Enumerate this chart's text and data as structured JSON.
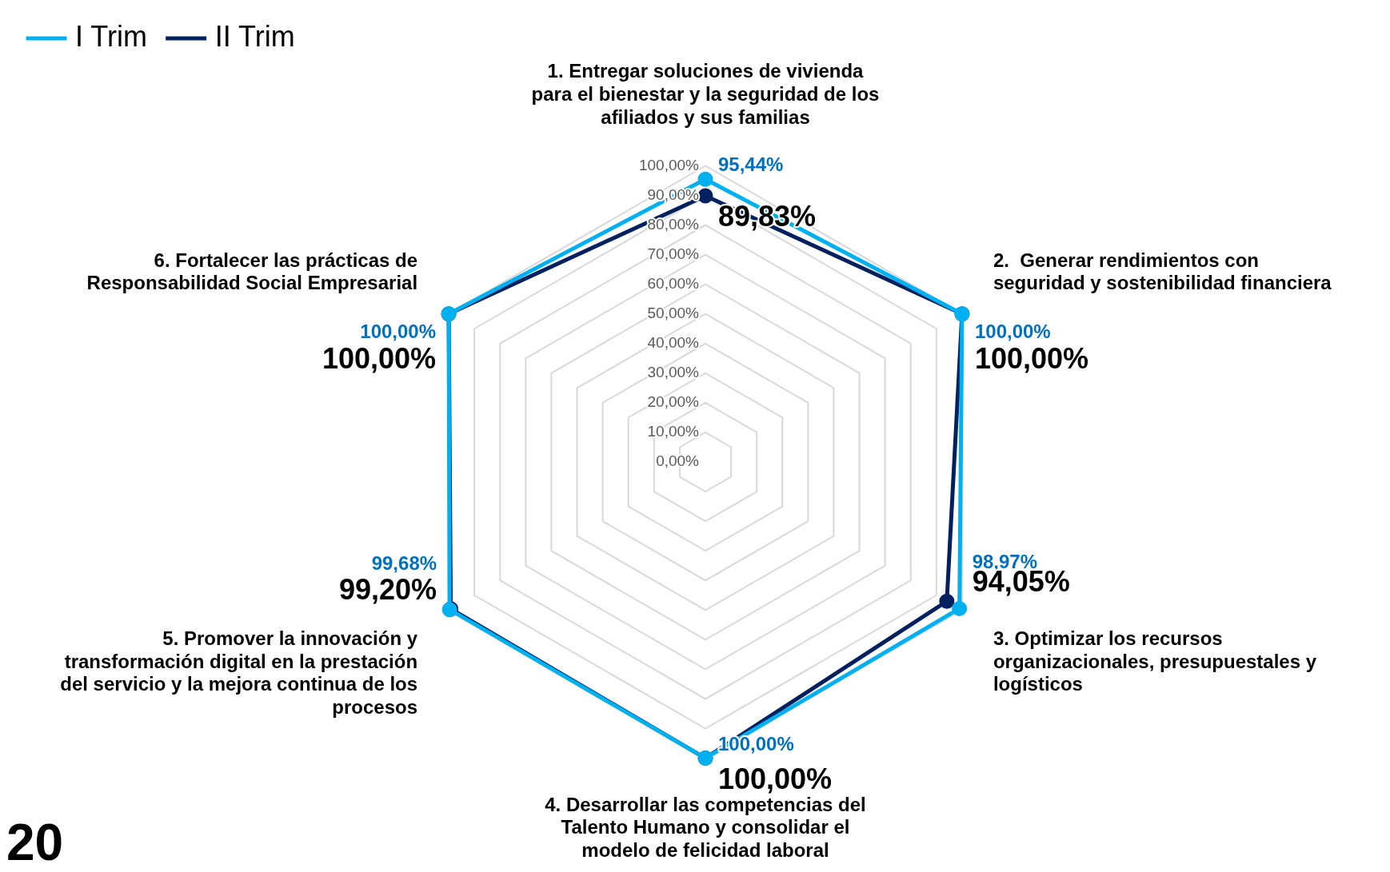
{
  "chart_data": {
    "type": "radar",
    "categories": [
      "1. Entregar soluciones de vivienda para el bienestar y la seguridad de los afiliados y sus familias",
      "2.  Generar rendimientos con seguridad y sostenibilidad financiera",
      "3. Optimizar los recursos organizacionales, presupuestales y logísticos",
      "4. Desarrollar las competencias del Talento Humano y consolidar el modelo de felicidad laboral",
      "5. Promover la innovación y transformación digital en la prestación del servicio y la mejora continua de los procesos",
      "6. Fortalecer las prácticas de Responsabilidad Social Empresarial"
    ],
    "series": [
      {
        "name": "I Trim",
        "color": "#00b0f0",
        "values": [
          95.44,
          100,
          98.97,
          100,
          99.68,
          100
        ],
        "value_labels": [
          "95,44%",
          "100,00%",
          "98,97%",
          "100,00%",
          "99,68%",
          "100,00%"
        ]
      },
      {
        "name": "II Trim",
        "color": "#002060",
        "values": [
          89.83,
          100,
          94.05,
          100,
          99.2,
          100
        ],
        "value_labels": [
          "89,83%",
          "100,00%",
          "94,05%",
          "100,00%",
          "99,20%",
          "100,00%"
        ]
      }
    ],
    "ylim": [
      0,
      100
    ],
    "yticks": [
      {
        "value": 0,
        "label": "0,00%"
      },
      {
        "value": 10,
        "label": "10,00%"
      },
      {
        "value": 20,
        "label": "20,00%"
      },
      {
        "value": 30,
        "label": "30,00%"
      },
      {
        "value": 40,
        "label": "40,00%"
      },
      {
        "value": 50,
        "label": "50,00%"
      },
      {
        "value": 60,
        "label": "60,00%"
      },
      {
        "value": 70,
        "label": "70,00%"
      },
      {
        "value": 80,
        "label": "80,00%"
      },
      {
        "value": 90,
        "label": "90,00%"
      },
      {
        "value": 100,
        "label": "100,00%"
      }
    ],
    "grid": true,
    "legend": "top left",
    "marker": "circle",
    "annotations": [
      "20"
    ]
  }
}
